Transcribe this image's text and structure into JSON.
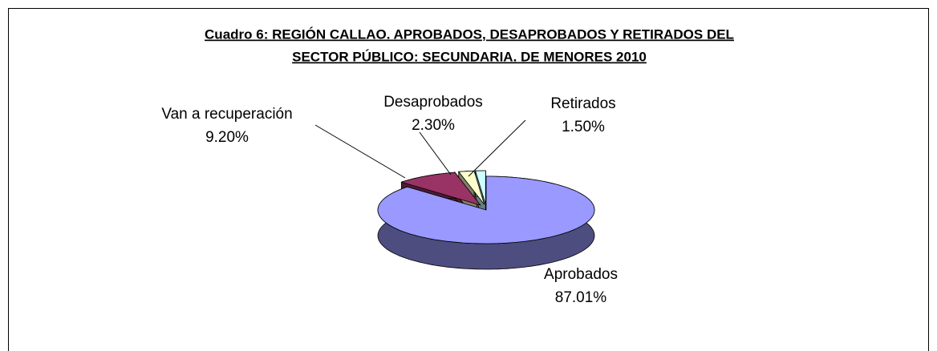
{
  "chart_data": {
    "type": "pie3d",
    "title": [
      "Cuadro 6: REGIÓN CALLAO. APROBADOS, DESAPROBADOS  Y RETIRADOS DEL",
      "SECTOR PÚBLICO: SECUNDARIA. DE MENORES 2010"
    ],
    "categories": [
      "Aprobados",
      "Van a recuperación",
      "Desaprobados",
      "Retirados"
    ],
    "values": [
      87.01,
      9.2,
      2.3,
      1.5
    ],
    "value_labels": [
      "87.01%",
      "9.20%",
      "2.30%",
      "1.50%"
    ],
    "colors": [
      "#9999ff",
      "#993366",
      "#ffffcc",
      "#ccffff"
    ]
  }
}
